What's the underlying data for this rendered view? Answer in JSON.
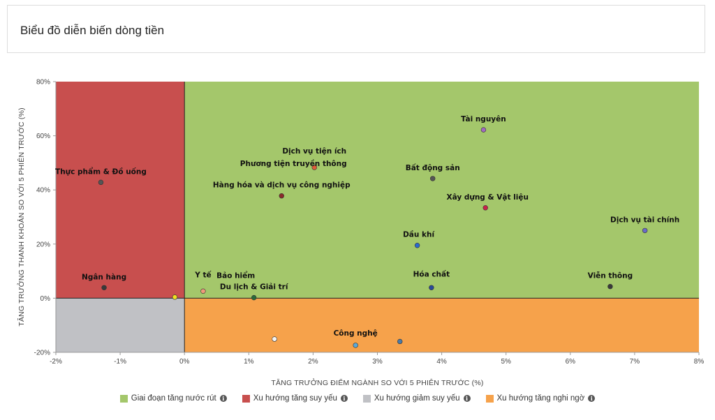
{
  "header": {
    "title": "Biểu đồ diễn biến dòng tiền"
  },
  "colors": {
    "green": "#a4c76b",
    "red": "#c84f4e",
    "gray": "#c0c1c5",
    "orange": "#f6a24b"
  },
  "legend": [
    {
      "label": "Giai đoạn tăng nước rút",
      "color": "#a4c76b",
      "icon": "info-icon"
    },
    {
      "label": "Xu hướng tăng suy yếu",
      "color": "#c84f4e",
      "icon": "info-icon"
    },
    {
      "label": "Xu hướng giảm suy yếu",
      "color": "#c0c1c5",
      "icon": "info-icon"
    },
    {
      "label": "Xu hướng tăng nghi ngờ",
      "color": "#f6a24b",
      "icon": "info-icon"
    }
  ],
  "chart_data": {
    "type": "scatter",
    "xlabel": "TĂNG TRƯỞNG ĐIỂM NGÀNH SO VỚI 5 PHIÊN TRƯỚC (%)",
    "ylabel": "TĂNG TRƯỞNG THANH KHOẢN SO VỚI 5 PHIÊN TRƯỚC (%)",
    "xlim": [
      -2,
      8
    ],
    "ylim": [
      -20,
      80
    ],
    "xticks": [
      -2,
      -1,
      0,
      1,
      2,
      3,
      4,
      5,
      6,
      7,
      8
    ],
    "xtick_labels": [
      "-2%",
      "-1%",
      "0%",
      "1%",
      "2%",
      "3%",
      "4%",
      "5%",
      "6%",
      "7%",
      "8%"
    ],
    "yticks": [
      -20,
      0,
      20,
      40,
      60,
      80
    ],
    "ytick_labels": [
      "-20%",
      "0%",
      "20%",
      "40%",
      "60%",
      "80%"
    ],
    "grid": false,
    "legend_position": "bottom",
    "points": [
      {
        "label": "Tài nguyên",
        "x": 4.65,
        "y": 62.2,
        "color": "#a06ac0"
      },
      {
        "label": "Dịch vụ tiện ích",
        "x": 2.02,
        "y": 48.3,
        "color": "#e05a3a"
      },
      {
        "label": "Phương tiện truyền thông",
        "x": 2.02,
        "y": 48.3,
        "color": "#e05a3a",
        "label_only": true
      },
      {
        "label": "Bất động sản",
        "x": 3.86,
        "y": 44.2,
        "color": "#555555"
      },
      {
        "label": "Thực phẩm & Đồ uống",
        "x": -1.3,
        "y": 42.8,
        "color": "#555555"
      },
      {
        "label": "Hàng hóa và dịch vụ công nghiệp",
        "x": 1.51,
        "y": 37.8,
        "color": "#8a2a2a"
      },
      {
        "label": "Xây dựng & Vật liệu",
        "x": 4.68,
        "y": 33.4,
        "color": "#c8224a"
      },
      {
        "label": "Dịch vụ tài chính",
        "x": 7.16,
        "y": 25.0,
        "color": "#6a6ac8"
      },
      {
        "label": "Dầu khí",
        "x": 3.62,
        "y": 19.5,
        "color": "#2a6ad0"
      },
      {
        "label": "Viễn thông",
        "x": 6.62,
        "y": 4.3,
        "color": "#3a3a3a"
      },
      {
        "label": "Ngân hàng",
        "x": -1.25,
        "y": 3.9,
        "color": "#3a3a3a"
      },
      {
        "label": "Hóa chất",
        "x": 3.84,
        "y": 3.9,
        "color": "#2a4a9a"
      },
      {
        "label": "Y tế",
        "x": 0.29,
        "y": 2.6,
        "color": "#f09a7a"
      },
      {
        "label": "Bảo hiểm",
        "x": 1.08,
        "y": 0.2,
        "color": "#2a6a3a",
        "label_only": true
      },
      {
        "label": "Du lịch & Giải trí",
        "x": 1.08,
        "y": 0.2,
        "color": "#2a6a3a"
      },
      {
        "label": "",
        "x": -0.15,
        "y": 0.4,
        "color": "#f0e020"
      },
      {
        "label": "",
        "x": 1.4,
        "y": -15.1,
        "color": "#f4f4f4"
      },
      {
        "label": "Công nghệ",
        "x": 2.66,
        "y": -17.4,
        "color": "#5aa8d8"
      },
      {
        "label": "",
        "x": 3.35,
        "y": -16.0,
        "color": "#4a7aa8"
      }
    ]
  }
}
